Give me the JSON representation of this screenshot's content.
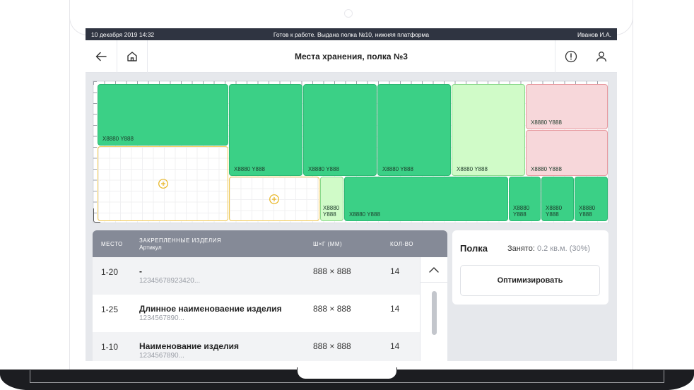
{
  "status_bar": {
    "datetime": "10 декабря 2019 14:32",
    "message": "Готов к работе. Выдана полка №10, нижняя платформа",
    "user": "Иванов И.А."
  },
  "app_bar": {
    "title": "Места хранения, полка №3",
    "icons": [
      "arrow-left-icon",
      "home-icon",
      "alert-circle-icon",
      "user-icon"
    ]
  },
  "map": {
    "cells": [
      {
        "label": "X8880 Y888",
        "state": "occupied"
      },
      {
        "label": "X8880 Y888",
        "state": "occupied"
      },
      {
        "label": "X8880 Y888",
        "state": "occupied"
      },
      {
        "label": "X8880 Y888",
        "state": "occupied"
      },
      {
        "label": "X8880 Y888",
        "state": "partial"
      },
      {
        "label": "X8880 Y888",
        "state": "blocked"
      },
      {
        "label": "X8880 Y888",
        "state": "blocked"
      },
      {
        "label": "X8880\nY888",
        "state": "partial"
      },
      {
        "label": "X8880 Y888",
        "state": "occupied"
      },
      {
        "label": "X8880\nY888",
        "state": "occupied"
      },
      {
        "label": "X8880\nY888",
        "state": "occupied"
      },
      {
        "label": "X8880\nY888",
        "state": "occupied"
      }
    ],
    "colors": {
      "occupied": "#3bd086",
      "partial": "#d0fbc8",
      "blocked": "#f7d7da",
      "empty_border": "#f0c851",
      "add_icon": "#e8b41f"
    }
  },
  "table": {
    "headers": {
      "place": "Место",
      "items": "Закрепленные изделия",
      "article": "Артикул",
      "size": "Ш×Г (мм)",
      "qty": "Кол-во"
    },
    "rows": [
      {
        "place": "1-20",
        "name": "-",
        "article": "12345678923420...",
        "size": "888 × 888",
        "qty": "14"
      },
      {
        "place": "1-25",
        "name": "Длинное наименоваение изделия",
        "article": "1234567890...",
        "size": "888 × 888",
        "qty": "14"
      },
      {
        "place": "1-10",
        "name": "Наименование изделия",
        "article": "1234567890...",
        "size": "888 × 888",
        "qty": "14"
      }
    ]
  },
  "panel": {
    "title": "Полка",
    "occupied_label": "Занято:",
    "occupied_value": "0.2 кв.м. (30%)",
    "optimize_button": "Оптимизировать"
  }
}
